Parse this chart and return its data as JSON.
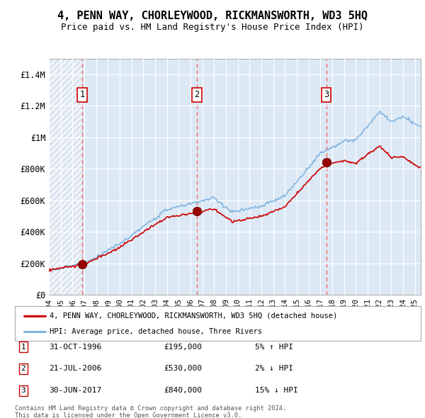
{
  "title": "4, PENN WAY, CHORLEYWOOD, RICKMANSWORTH, WD3 5HQ",
  "subtitle": "Price paid vs. HM Land Registry's House Price Index (HPI)",
  "title_fontsize": 11,
  "subtitle_fontsize": 9,
  "background_color": "#ffffff",
  "plot_bg_color": "#dce9f5",
  "ylim": [
    0,
    1500000
  ],
  "yticks": [
    0,
    200000,
    400000,
    600000,
    800000,
    1000000,
    1200000,
    1400000
  ],
  "ytick_labels": [
    "£0",
    "£200K",
    "£400K",
    "£600K",
    "£800K",
    "£1M",
    "£1.2M",
    "£1.4M"
  ],
  "legend_line1": "4, PENN WAY, CHORLEYWOOD, RICKMANSWORTH, WD3 5HQ (detached house)",
  "legend_line2": "HPI: Average price, detached house, Three Rivers",
  "sale1_label": "1",
  "sale1_date": "31-OCT-1996",
  "sale1_price": "£195,000",
  "sale1_hpi": "5% ↑ HPI",
  "sale1_x": 1996.83,
  "sale1_y": 195000,
  "sale2_label": "2",
  "sale2_date": "21-JUL-2006",
  "sale2_price": "£530,000",
  "sale2_hpi": "2% ↓ HPI",
  "sale2_x": 2006.54,
  "sale2_y": 530000,
  "sale3_label": "3",
  "sale3_date": "30-JUN-2017",
  "sale3_price": "£840,000",
  "sale3_hpi": "15% ↓ HPI",
  "sale3_x": 2017.49,
  "sale3_y": 840000,
  "footer1": "Contains HM Land Registry data © Crown copyright and database right 2024.",
  "footer2": "This data is licensed under the Open Government Licence v3.0.",
  "hpi_line_color": "#7fb3e0",
  "price_line_color": "#cc0000",
  "dot_color": "#990000",
  "vline_color": "#ff6666",
  "box_edge_color": "#cc0000",
  "xmin": 1994,
  "xmax": 2025.5
}
